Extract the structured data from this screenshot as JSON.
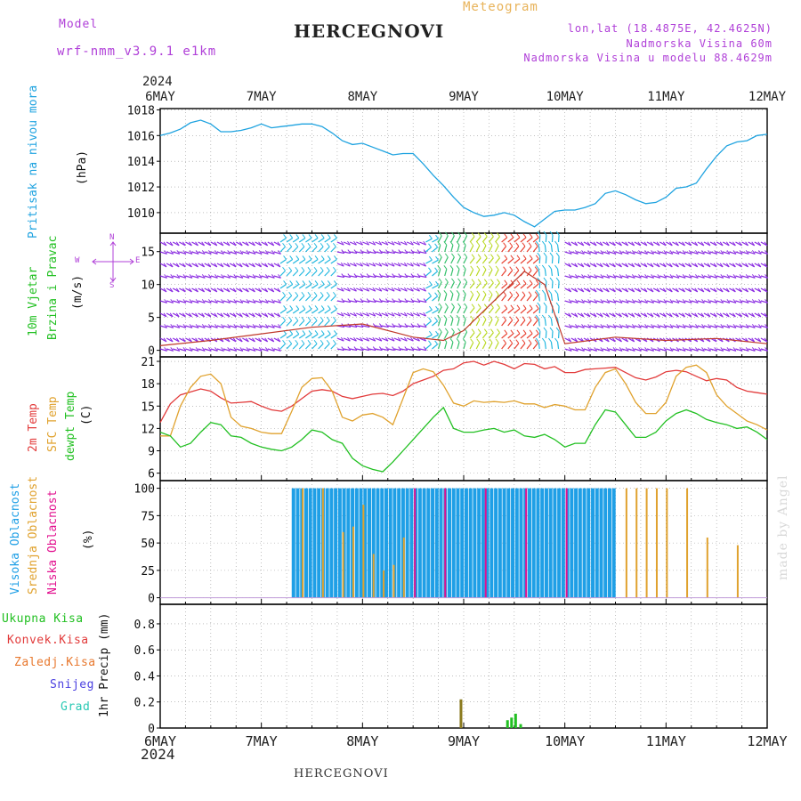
{
  "header": {
    "model_label": "Model",
    "model_value": "wrf-nmm_v3.9.1 e1km",
    "title": "HERCEGNOVI",
    "product": "Meteogram",
    "lonlat": "lon,lat (18.4875E, 42.4625N)",
    "elevation": "Nadmorska Visina 60m",
    "model_elevation": "Nadmorska Visina u modelu 88.4629m"
  },
  "footer": {
    "title": "HERCEGNOVI",
    "credit": "made by Angel"
  },
  "time_axis": {
    "year": "2024",
    "labels": [
      "6MAY",
      "7MAY",
      "8MAY",
      "9MAY",
      "10MAY",
      "11MAY",
      "12MAY"
    ]
  },
  "panel_labels": {
    "pressure": [
      "Pritisak na nivou mora",
      "(hPa)"
    ],
    "wind": [
      "10m Vjetar",
      "Brzina i Pravac",
      "(m/s)"
    ],
    "wind_compass": {
      "n": "N",
      "s": "S",
      "e": "E",
      "w": "W"
    },
    "temp": [
      "2m Temp",
      "SFC Temp",
      "dewpt Temp",
      "(C)"
    ],
    "cloud": [
      "Visoka Oblacnost",
      "Srednja Oblacnost",
      "Niska Oblacnost",
      "(%)"
    ],
    "precip_legend": [
      "Ukupna Kisa",
      "Konvek.Kisa",
      "Zaledj.Kisa",
      "Snijeg",
      "Grad"
    ],
    "precip_unit": "1hr Precip (mm)"
  },
  "colors": {
    "pressure": "#1fa3e0",
    "t2m": "#e23b3b",
    "sfc": "#e0a22e",
    "dewpt": "#22c022",
    "high_cloud": "#1f9fe6",
    "mid_cloud": "#e0a22e",
    "low_cloud": "#e2108f",
    "rain": "#22c022",
    "conv": "#e23b3b",
    "frz": "#e8782e",
    "snow": "#4a3fe0",
    "hail": "#2ac9b4",
    "precip_bar": "#8a7a1e",
    "model_label": "#b040d8",
    "product": "#e8b35a"
  },
  "chart_data": [
    {
      "type": "line",
      "name": "pressure",
      "ylabel": "(hPa)",
      "yticks": [
        1010,
        1012,
        1014,
        1016,
        1018
      ],
      "ylim": [
        1008.4,
        1018.1
      ],
      "series": [
        {
          "name": "Pritisak na nivou mora",
          "x": [
            0,
            0.1,
            0.2,
            0.3,
            0.4,
            0.5,
            0.6,
            0.7,
            0.8,
            0.9,
            1.0,
            1.1,
            1.2,
            1.3,
            1.4,
            1.5,
            1.6,
            1.7,
            1.8,
            1.9,
            2.0,
            2.1,
            2.2,
            2.3,
            2.4,
            2.5,
            2.6,
            2.7,
            2.8,
            2.9,
            3.0,
            3.1,
            3.2,
            3.3,
            3.4,
            3.5,
            3.6,
            3.7,
            3.8,
            3.9,
            4.0,
            4.1,
            4.2,
            4.3,
            4.4,
            4.5,
            4.6,
            4.7,
            4.8,
            4.9,
            5.0,
            5.1,
            5.2,
            5.3,
            5.4,
            5.5,
            5.6,
            5.7,
            5.8,
            5.9,
            6.0
          ],
          "y": [
            1016.0,
            1016.2,
            1016.5,
            1017.0,
            1017.2,
            1016.9,
            1016.3,
            1016.3,
            1016.4,
            1016.6,
            1016.9,
            1016.6,
            1016.7,
            1016.8,
            1016.9,
            1016.9,
            1016.7,
            1016.2,
            1015.6,
            1015.3,
            1015.4,
            1015.1,
            1014.8,
            1014.5,
            1014.6,
            1014.6,
            1013.8,
            1012.9,
            1012.1,
            1011.2,
            1010.4,
            1010.0,
            1009.7,
            1009.8,
            1010.0,
            1009.8,
            1009.3,
            1008.9,
            1009.5,
            1010.1,
            1010.2,
            1010.2,
            1010.4,
            1010.7,
            1011.5,
            1011.7,
            1011.4,
            1011.0,
            1010.7,
            1010.8,
            1011.2,
            1011.9,
            1012.0,
            1012.3,
            1013.4,
            1014.4,
            1015.2,
            1015.5,
            1015.6,
            1016.0,
            1016.1
          ]
        }
      ]
    },
    {
      "type": "line",
      "name": "wind",
      "ylabel": "(m/s)",
      "yticks": [
        0,
        5,
        10,
        15
      ],
      "ylim": [
        -1,
        17.8
      ],
      "series": [
        {
          "name": "10m Vjetar",
          "x": [
            0,
            0.5,
            1.0,
            1.5,
            2.0,
            2.5,
            2.8,
            3.0,
            3.2,
            3.4,
            3.6,
            3.8,
            4.0,
            4.5,
            5.0,
            5.5,
            6.0
          ],
          "y": [
            0.7,
            1.5,
            2.5,
            3.5,
            4.0,
            2.0,
            1.5,
            3.0,
            6.0,
            9.0,
            12.0,
            10.0,
            1.0,
            2.0,
            1.5,
            1.8,
            1.0
          ]
        }
      ]
    },
    {
      "type": "line",
      "name": "temperature",
      "ylabel": "(C)",
      "yticks": [
        6,
        9,
        12,
        15,
        18,
        21
      ],
      "ylim": [
        5.0,
        21.6
      ],
      "series": [
        {
          "name": "2m Temp",
          "x": [
            0,
            0.1,
            0.2,
            0.3,
            0.4,
            0.5,
            0.6,
            0.7,
            0.8,
            0.9,
            1.0,
            1.1,
            1.2,
            1.3,
            1.4,
            1.5,
            1.6,
            1.7,
            1.8,
            1.9,
            2.0,
            2.1,
            2.2,
            2.3,
            2.4,
            2.5,
            2.6,
            2.7,
            2.8,
            2.9,
            3.0,
            3.1,
            3.2,
            3.3,
            3.4,
            3.5,
            3.6,
            3.7,
            3.8,
            3.9,
            4.0,
            4.1,
            4.2,
            4.3,
            4.4,
            4.5,
            4.6,
            4.7,
            4.8,
            4.9,
            5.0,
            5.1,
            5.2,
            5.3,
            5.4,
            5.5,
            5.6,
            5.7,
            5.8,
            5.9,
            6.0
          ],
          "y": [
            12.8,
            15.3,
            16.5,
            16.9,
            17.3,
            17.0,
            16.1,
            15.4,
            15.5,
            15.6,
            15.0,
            14.5,
            14.3,
            15.0,
            16.0,
            17.0,
            17.2,
            17.0,
            16.3,
            16.0,
            16.3,
            16.6,
            16.7,
            16.4,
            17.0,
            18.0,
            18.5,
            19.0,
            19.8,
            20.0,
            20.8,
            21.0,
            20.5,
            21.0,
            20.6,
            20.0,
            20.7,
            20.6,
            20.0,
            20.3,
            19.5,
            19.5,
            19.9,
            20.0,
            20.1,
            20.2,
            19.5,
            18.8,
            18.5,
            18.9,
            19.6,
            19.8,
            19.6,
            19.0,
            18.4,
            18.7,
            18.5,
            17.5,
            17.0,
            16.8,
            16.6
          ]
        },
        {
          "name": "SFC Temp",
          "x": [
            0,
            0.1,
            0.2,
            0.3,
            0.4,
            0.5,
            0.6,
            0.7,
            0.8,
            0.9,
            1.0,
            1.1,
            1.2,
            1.3,
            1.4,
            1.5,
            1.6,
            1.7,
            1.8,
            1.9,
            2.0,
            2.1,
            2.2,
            2.3,
            2.4,
            2.5,
            2.6,
            2.7,
            2.8,
            2.9,
            3.0,
            3.1,
            3.2,
            3.3,
            3.4,
            3.5,
            3.6,
            3.7,
            3.8,
            3.9,
            4.0,
            4.1,
            4.2,
            4.3,
            4.4,
            4.5,
            4.6,
            4.7,
            4.8,
            4.9,
            5.0,
            5.1,
            5.2,
            5.3,
            5.4,
            5.5,
            5.6,
            5.7,
            5.8,
            5.9,
            6.0
          ],
          "y": [
            11.0,
            11.0,
            15.0,
            17.5,
            19.0,
            19.3,
            18.0,
            13.5,
            12.3,
            12.0,
            11.5,
            11.3,
            11.3,
            14.3,
            17.5,
            18.7,
            18.8,
            17.0,
            13.5,
            13.0,
            13.8,
            14.0,
            13.5,
            12.5,
            16.0,
            19.5,
            20.0,
            19.6,
            17.8,
            15.4,
            15.0,
            15.7,
            15.5,
            15.6,
            15.5,
            15.7,
            15.3,
            15.3,
            14.8,
            15.2,
            15.0,
            14.5,
            14.5,
            17.5,
            19.5,
            20.0,
            18.0,
            15.5,
            14.0,
            14.0,
            15.5,
            19.0,
            20.2,
            20.5,
            19.5,
            16.5,
            15.0,
            14.0,
            13.0,
            12.5,
            11.8
          ]
        },
        {
          "name": "dewpt Temp",
          "x": [
            0,
            0.1,
            0.2,
            0.3,
            0.4,
            0.5,
            0.6,
            0.7,
            0.8,
            0.9,
            1.0,
            1.1,
            1.2,
            1.3,
            1.4,
            1.5,
            1.6,
            1.7,
            1.8,
            1.9,
            2.0,
            2.1,
            2.2,
            2.3,
            2.4,
            2.5,
            2.6,
            2.7,
            2.8,
            2.9,
            3.0,
            3.1,
            3.2,
            3.3,
            3.4,
            3.5,
            3.6,
            3.7,
            3.8,
            3.9,
            4.0,
            4.1,
            4.2,
            4.3,
            4.4,
            4.5,
            4.6,
            4.7,
            4.8,
            4.9,
            5.0,
            5.1,
            5.2,
            5.3,
            5.4,
            5.5,
            5.6,
            5.7,
            5.8,
            5.9,
            6.0
          ],
          "y": [
            11.5,
            11.0,
            9.5,
            10.0,
            11.5,
            12.8,
            12.5,
            11.0,
            10.8,
            10.0,
            9.5,
            9.2,
            9.0,
            9.5,
            10.5,
            11.8,
            11.5,
            10.5,
            10.0,
            8.0,
            7.0,
            6.5,
            6.2,
            7.5,
            9.0,
            10.5,
            12.0,
            13.5,
            14.8,
            12.0,
            11.5,
            11.5,
            11.8,
            12.0,
            11.5,
            11.8,
            11.0,
            10.8,
            11.2,
            10.5,
            9.5,
            10.0,
            10.0,
            12.5,
            14.5,
            14.2,
            12.5,
            10.8,
            10.8,
            11.5,
            13.0,
            14.0,
            14.5,
            14.0,
            13.2,
            12.8,
            12.5,
            12.0,
            12.2,
            11.5,
            10.5
          ]
        }
      ]
    },
    {
      "type": "bar",
      "name": "cloud cover",
      "ylabel": "(%)",
      "yticks": [
        0,
        25,
        50,
        75,
        100
      ],
      "ylim": [
        -6.0,
        107
      ],
      "series": [
        {
          "name": "Visoka Oblacnost",
          "x_range": [
            1.3,
            4.5
          ],
          "value": 100
        },
        {
          "name": "Srednja Oblacnost",
          "x": [
            1.4,
            1.6,
            1.8,
            1.9,
            2.0,
            2.1,
            2.2,
            2.3,
            2.4,
            4.6,
            4.7,
            4.8,
            4.9,
            5.0,
            5.2,
            5.4,
            5.7
          ],
          "y": [
            100,
            100,
            60,
            65,
            85,
            40,
            25,
            30,
            55,
            100,
            100,
            100,
            100,
            100,
            100,
            55,
            48
          ]
        },
        {
          "name": "Niska Oblacnost",
          "x": [
            2.5,
            2.8,
            3.2,
            3.6,
            4.0
          ],
          "y": [
            100,
            100,
            100,
            100,
            100
          ]
        }
      ]
    },
    {
      "type": "bar",
      "name": "precipitation",
      "ylabel": "1hr Precip (mm)",
      "yticks": [
        0,
        0.2,
        0.4,
        0.6,
        0.8
      ],
      "ylim": [
        0,
        0.95
      ],
      "series": [
        {
          "name": "Ukupna Kisa",
          "x": [
            2.96,
            3.42,
            3.46,
            3.5,
            3.55
          ],
          "y": [
            0.22,
            0.06,
            0.08,
            0.11,
            0.03
          ]
        },
        {
          "name": "Konvek.Kisa",
          "x": [],
          "y": []
        },
        {
          "name": "Zaledj.Kisa",
          "x": [],
          "y": []
        },
        {
          "name": "Snijeg",
          "x": [],
          "y": []
        },
        {
          "name": "Grad",
          "x": [],
          "y": []
        }
      ]
    }
  ]
}
